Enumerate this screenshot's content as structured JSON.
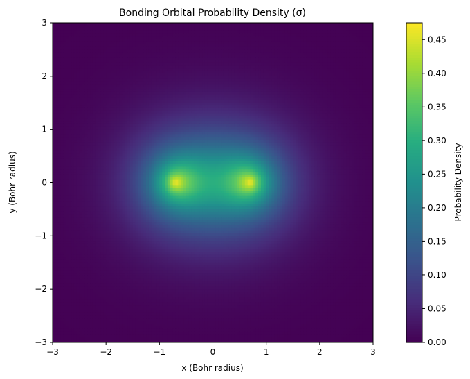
{
  "chart_data": {
    "type": "heatmap",
    "title": "Bonding Orbital Probability Density (σ)",
    "xlabel": "x (Bohr radius)",
    "ylabel": "y (Bohr radius)",
    "xlim": [
      -3,
      3
    ],
    "ylim": [
      -3,
      3
    ],
    "xticks": [
      -3,
      -2,
      -1,
      0,
      1,
      2,
      3
    ],
    "yticks": [
      -3,
      -2,
      -1,
      0,
      1,
      2,
      3
    ],
    "xtick_labels": [
      "−3",
      "−2",
      "−1",
      "0",
      "1",
      "2",
      "3"
    ],
    "ytick_labels": [
      "−3",
      "−2",
      "−1",
      "0",
      "1",
      "2",
      "3"
    ],
    "nuclei_x": [
      -0.7,
      0.7
    ],
    "max_density": 0.475,
    "colormap": "viridis",
    "grid": false,
    "colorbar": {
      "label": "Probability Density",
      "range": [
        0,
        0.475
      ],
      "ticks": [
        0.0,
        0.05,
        0.1,
        0.15,
        0.2,
        0.25,
        0.3,
        0.35,
        0.4,
        0.45
      ],
      "tick_labels": [
        "0.00",
        "0.05",
        "0.10",
        "0.15",
        "0.20",
        "0.25",
        "0.30",
        "0.35",
        "0.40",
        "0.45"
      ]
    }
  }
}
